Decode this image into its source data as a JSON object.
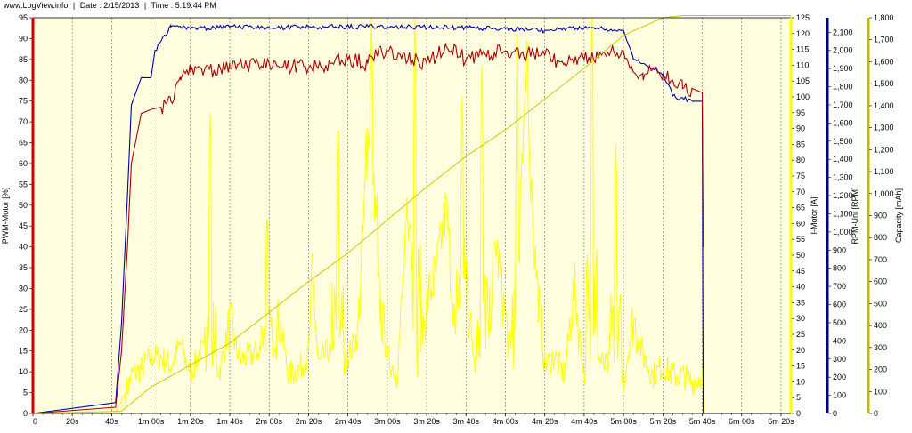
{
  "header": {
    "site": "www.LogView.info",
    "sep1": "|",
    "date": "Date : 2/15/2013",
    "sep2": "|",
    "time": "Time : 5:19:44 PM"
  },
  "chart_data": {
    "type": "line",
    "background_color": "#ffffe0",
    "grid": true,
    "x_ticks": [
      "0",
      "20s",
      "40s",
      "1m 00s",
      "1m 20s",
      "1m 40s",
      "2m 00s",
      "2m 20s",
      "2m 40s",
      "3m 00s",
      "3m 20s",
      "3m 40s",
      "4m 00s",
      "4m 20s",
      "4m 40s",
      "5m 00s",
      "5m 20s",
      "5m 40s",
      "6m 00s",
      "6m 20s"
    ],
    "xlim": [
      0,
      385
    ],
    "axes": [
      {
        "id": "pwm",
        "label": "PWM-Motor [%]",
        "min": 0,
        "max": 95,
        "step": 5,
        "side": "left",
        "color": "#cc0000",
        "ticks": [
          "0",
          "5",
          "10",
          "15",
          "20",
          "25",
          "30",
          "35",
          "40",
          "45",
          "50",
          "55",
          "60",
          "65",
          "70",
          "75",
          "80",
          "85",
          "90",
          "95"
        ]
      },
      {
        "id": "imotor",
        "label": "I-Motor [A]",
        "min": 0,
        "max": 125,
        "step": 5,
        "side": "right",
        "color": "#ffff00",
        "ticks": [
          "0",
          "5",
          "10",
          "15",
          "20",
          "25",
          "30",
          "35",
          "40",
          "45",
          "50",
          "55",
          "60",
          "65",
          "70",
          "75",
          "80",
          "85",
          "90",
          "95",
          "100",
          "105",
          "110",
          "115",
          "120",
          "125"
        ]
      },
      {
        "id": "rpm",
        "label": "RPM-Uni [RPM]",
        "min": 0,
        "max": 2180,
        "step": 100,
        "side": "right",
        "color": "#000080",
        "ticks": [
          "0",
          "100",
          "200",
          "300",
          "400",
          "500",
          "600",
          "700",
          "800",
          "900",
          "1,000",
          "1,100",
          "1,200",
          "1,300",
          "1,400",
          "1,500",
          "1,600",
          "1,700",
          "1,800",
          "1,900",
          "2,000",
          "2,100"
        ]
      },
      {
        "id": "capacity",
        "label": "Capacity [mAh]",
        "min": 0,
        "max": 1800,
        "step": 100,
        "side": "right",
        "color": "#c8b400",
        "ticks": [
          "0",
          "100",
          "200",
          "300",
          "400",
          "500",
          "600",
          "700",
          "800",
          "900",
          "1,000",
          "1,100",
          "1,200",
          "1,300",
          "1,400",
          "1,500",
          "1,600",
          "1,700",
          "1,800"
        ]
      }
    ],
    "series": [
      {
        "axis": "rpm",
        "color": "#0000aa",
        "x": [
          0,
          42,
          45,
          48,
          50,
          55,
          60,
          62,
          70,
          80,
          100,
          120,
          140,
          180,
          190,
          240,
          260,
          280,
          300,
          305,
          315,
          320,
          325,
          335,
          340,
          340.5,
          385
        ],
        "y": [
          0,
          60,
          500,
          1200,
          1700,
          1850,
          1850,
          2000,
          2130,
          2120,
          2130,
          2125,
          2130,
          2130,
          2130,
          2120,
          2110,
          2125,
          2110,
          1950,
          1900,
          1870,
          1750,
          1720,
          1720,
          0,
          0
        ]
      },
      {
        "axis": "pwm",
        "color": "#aa0000",
        "x": [
          0,
          42,
          45,
          48,
          50,
          55,
          60,
          65,
          70,
          75,
          80,
          100,
          120,
          140,
          160,
          170,
          175,
          180,
          200,
          210,
          220,
          240,
          260,
          270,
          280,
          300,
          305,
          310,
          315,
          320,
          325,
          330,
          335,
          340,
          340.5
        ],
        "y": [
          0,
          1.5,
          15,
          40,
          60,
          72,
          73,
          73.5,
          75,
          80,
          82,
          83,
          84,
          83,
          85,
          84,
          86,
          87,
          84,
          88,
          85,
          87,
          86,
          84,
          85,
          87,
          82,
          80,
          83,
          81,
          80,
          78,
          78,
          77,
          40
        ]
      },
      {
        "axis": "capacity",
        "color": "#d4c400",
        "x": [
          0,
          45,
          60,
          80,
          100,
          120,
          140,
          160,
          180,
          200,
          220,
          240,
          260,
          280,
          300,
          320,
          330,
          340,
          385
        ],
        "y": [
          0,
          10,
          120,
          220,
          320,
          460,
          600,
          730,
          880,
          1030,
          1170,
          1290,
          1430,
          1570,
          1720,
          1800,
          1810,
          1810,
          1810
        ]
      }
    ],
    "imotor_trace": {
      "axis": "imotor",
      "color": "#ffff00",
      "noise_level": 3,
      "x": [
        0,
        42,
        48,
        50,
        55,
        60,
        65,
        70,
        75,
        80,
        85,
        90,
        95,
        100,
        105,
        110,
        115,
        120,
        125,
        130,
        135,
        140,
        142,
        145,
        150,
        155,
        160,
        165,
        170,
        175,
        180,
        185,
        190,
        195,
        200,
        205,
        210,
        215,
        220,
        225,
        230,
        235,
        240,
        245,
        250,
        255,
        260,
        265,
        270,
        275,
        280,
        285,
        290,
        295,
        300,
        305,
        310,
        315,
        320,
        325,
        330,
        335,
        340,
        341,
        385
      ],
      "y": [
        0,
        0,
        8,
        12,
        14,
        18,
        18,
        15,
        22,
        12,
        20,
        15,
        14,
        28,
        17,
        18,
        20,
        15,
        30,
        12,
        14,
        18,
        45,
        15,
        20,
        12,
        18,
        25,
        85,
        40,
        18,
        12,
        60,
        15,
        35,
        45,
        65,
        20,
        35,
        15,
        15,
        55,
        30,
        10,
        95,
        50,
        15,
        18,
        12,
        40,
        12,
        20,
        15,
        15,
        10,
        30,
        18,
        12,
        15,
        12,
        12,
        10,
        12,
        0,
        0
      ],
      "spikes": [
        {
          "x": 90,
          "y": 95
        },
        {
          "x": 119,
          "y": 65
        },
        {
          "x": 155,
          "y": 95
        },
        {
          "x": 172,
          "y": 125
        },
        {
          "x": 194,
          "y": 125
        },
        {
          "x": 218,
          "y": 100
        },
        {
          "x": 228,
          "y": 110
        },
        {
          "x": 246,
          "y": 120
        },
        {
          "x": 251,
          "y": 125
        },
        {
          "x": 284,
          "y": 125
        },
        {
          "x": 296,
          "y": 85
        }
      ]
    }
  }
}
